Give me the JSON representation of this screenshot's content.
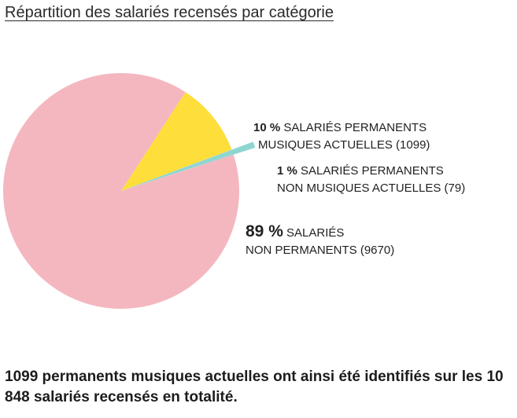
{
  "chart_data": {
    "type": "pie",
    "title": "Répartition des salariés recensés par catégorie",
    "slices": [
      {
        "pct_label": "10 %",
        "line1": "SALARIÉS PERMANENTS",
        "line2": "MUSIQUES ACTUELLES (1099)",
        "value": 1099,
        "color": "#fede3a",
        "exploded": false
      },
      {
        "pct_label": "1 %",
        "line1": "SALARIÉS PERMANENTS",
        "line2": "NON MUSIQUES ACTUELLES (79)",
        "value": 79,
        "color": "#8fd6d1",
        "exploded": true
      },
      {
        "pct_label": "89 %",
        "line1": "SALARIÉS",
        "line2": "NON PERMANENTS (9670)",
        "value": 9670,
        "color": "#f4b7bf",
        "exploded": false
      }
    ]
  },
  "footnote": "1099 permanents musiques actuelles ont ainsi été iden­tifiés sur les 10 848 salariés recensés en totalité."
}
